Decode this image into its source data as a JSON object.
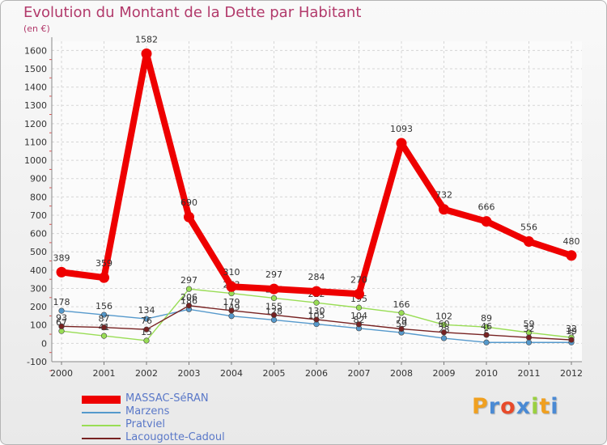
{
  "chart_data": {
    "type": "line",
    "title": "Evolution du Montant de la Dette par Habitant",
    "subtitle": "(en €)",
    "xlabel": "",
    "ylabel": "",
    "ylim": [
      -100,
      1650
    ],
    "yticks": [
      -100,
      0,
      100,
      200,
      300,
      400,
      500,
      600,
      700,
      800,
      900,
      1000,
      1100,
      1200,
      1300,
      1400,
      1500,
      1600
    ],
    "x": [
      "2000",
      "2001",
      "2002",
      "2003",
      "2004",
      "2005",
      "2006",
      "2007",
      "2008",
      "2009",
      "2010",
      "2011",
      "2012"
    ],
    "grid": true,
    "series": [
      {
        "name": "MASSAC-SéRAN",
        "color": "#ee0000",
        "values": [
          389,
          359,
          1582,
          690,
          310,
          297,
          284,
          270,
          1093,
          732,
          666,
          556,
          480
        ],
        "labels": [
          "389",
          "359",
          "1582",
          "690",
          "310",
          "297",
          "284",
          "270",
          "1093",
          "732",
          "666",
          "556",
          "480"
        ]
      },
      {
        "name": "Marzens",
        "color": "#5599cc",
        "values": [
          178,
          156,
          134,
          186,
          149,
          128,
          105,
          82,
          59,
          28,
          5,
          5,
          5
        ],
        "labels": [
          "178",
          "156",
          "134",
          "186",
          "149",
          "128",
          "105",
          "82",
          "59",
          "28",
          "5",
          "5",
          "5"
        ]
      },
      {
        "name": "Pratviel",
        "color": "#99dd55",
        "values": [
          67,
          41,
          15,
          297,
          273,
          247,
          222,
          195,
          166,
          102,
          89,
          59,
          32
        ],
        "labels": [
          "67",
          "41",
          "15",
          "297",
          "273",
          "247",
          "222",
          "195",
          "166",
          "102",
          "89",
          "59",
          "32"
        ]
      },
      {
        "name": "Lacougotte-Cadoul",
        "color": "#772222",
        "values": [
          93,
          87,
          76,
          206,
          179,
          155,
          130,
          104,
          79,
          60,
          46,
          32,
          19
        ],
        "labels": [
          "93",
          "87",
          "76",
          "206",
          "179",
          "155",
          "130",
          "104",
          "79",
          "60",
          "46",
          "32",
          "19"
        ]
      }
    ]
  },
  "legend_labels": [
    "MASSAC-SéRAN",
    "Marzens",
    "Pratviel",
    "Lacougotte-Cadoul"
  ],
  "logo": {
    "text": "Proxiti",
    "letters": [
      "P",
      "r",
      "o",
      "x",
      "i",
      "t",
      "i"
    ],
    "colors": [
      "#f0a020",
      "#4a8ad4",
      "#e84a2a",
      "#4a8ad4",
      "#9ad040",
      "#f0a020",
      "#4a8ad4"
    ]
  }
}
